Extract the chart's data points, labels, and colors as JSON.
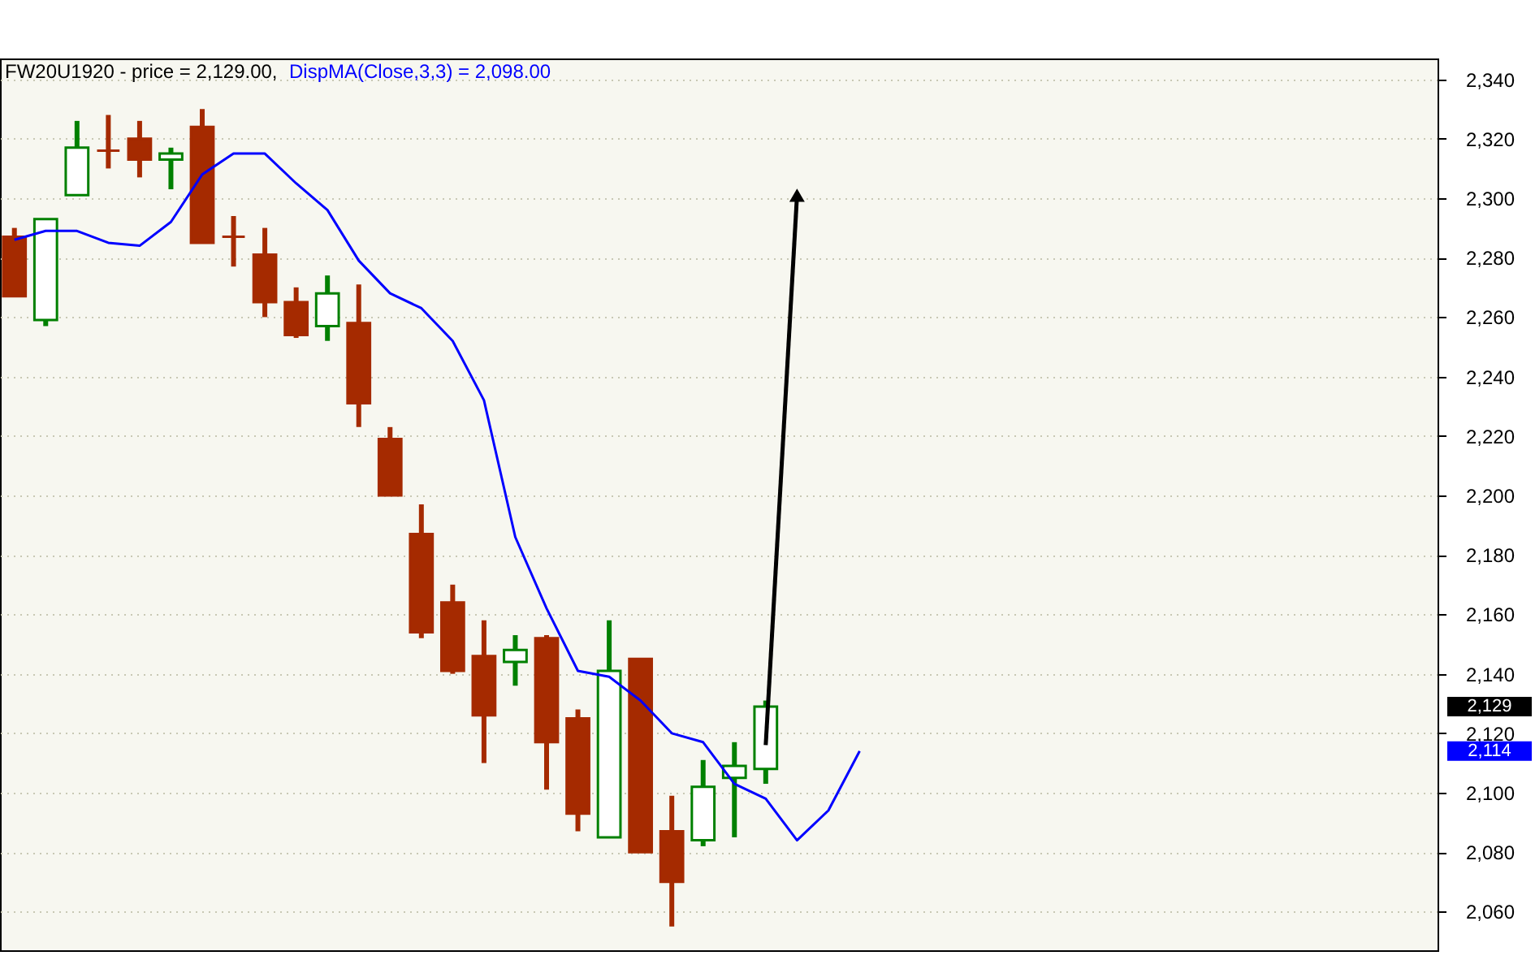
{
  "chart_data": {
    "type": "candlestick",
    "title": "FW20U1920 - price = 2,129.00,",
    "categories": [
      null,
      null,
      null,
      null,
      null,
      null,
      null,
      null,
      null,
      null,
      null,
      null,
      null,
      null,
      null,
      null,
      null,
      null,
      null,
      null,
      null,
      null,
      null,
      null,
      null,
      null,
      null,
      null,
      null,
      null,
      null,
      null,
      null,
      null,
      null,
      null,
      null,
      null,
      null,
      null,
      null,
      null,
      null,
      null,
      null,
      null
    ],
    "ohlc": [
      [
        2287,
        2290,
        2267,
        2267
      ],
      [
        2259,
        2293,
        2257,
        2293
      ],
      [
        2301,
        2326,
        2301,
        2317
      ],
      [
        2316,
        2328,
        2310,
        2316
      ],
      [
        2320,
        2326,
        2307,
        2313
      ],
      [
        2313,
        2317,
        2303,
        2315
      ],
      [
        2324,
        2330,
        2285,
        2285
      ],
      [
        2287,
        2294,
        2277,
        2287
      ],
      [
        2281,
        2290,
        2260,
        2265
      ],
      [
        2265,
        2270,
        2253,
        2254
      ],
      [
        2257,
        2274,
        2252,
        2268
      ],
      [
        2258,
        2271,
        2223,
        2231
      ],
      [
        2219,
        2223,
        2200,
        2200
      ],
      [
        2187,
        2197,
        2152,
        2154
      ],
      [
        2164,
        2170,
        2140,
        2141
      ],
      [
        2146,
        2158,
        2110,
        2126
      ],
      [
        2144,
        2153,
        2136,
        2148
      ],
      [
        2152,
        2153,
        2101,
        2117
      ],
      [
        2125,
        2128,
        2087,
        2093
      ],
      [
        2085,
        2158,
        2085,
        2141
      ],
      [
        2145,
        2145,
        2080,
        2080
      ],
      [
        2087,
        2099,
        2055,
        2070
      ],
      [
        2084,
        2111,
        2082,
        2102
      ],
      [
        2105,
        2117,
        2085,
        2109
      ],
      [
        2108,
        2131,
        2103,
        2129
      ],
      null,
      null,
      null,
      null,
      null,
      null,
      null,
      null,
      null,
      null,
      null,
      null,
      null,
      null,
      null,
      null,
      null,
      null,
      null,
      null,
      null
    ],
    "colors": [
      "#a52a00",
      "#008000",
      "#008000",
      "#a52a00",
      "#a52a00",
      "#008000",
      "#a52a00",
      "#a52a00",
      "#a52a00",
      "#a52a00",
      "#008000",
      "#a52a00",
      "#a52a00",
      "#a52a00",
      "#a52a00",
      "#a52a00",
      "#008000",
      "#a52a00",
      "#a52a00",
      "#008000",
      "#a52a00",
      "#a52a00",
      "#008000",
      "#008000",
      "#008000",
      null,
      null,
      null,
      null,
      null,
      null,
      null,
      null,
      null,
      null,
      null,
      null,
      null,
      null,
      null,
      null,
      null,
      null,
      null,
      null,
      null
    ],
    "series": [
      {
        "name": "DispMA(Close,3,3) = 2,098.00",
        "type": "line",
        "color": "#0000ff",
        "values": [
          2286,
          2289,
          2289,
          2285,
          2284,
          2292,
          2308,
          2315,
          2315,
          2305,
          2296,
          2279,
          2268,
          2263,
          2252,
          2232,
          2186,
          2162,
          2141,
          2139,
          2131,
          2120,
          2117,
          2103,
          2098,
          2084,
          2094,
          2114,
          null,
          null,
          null,
          null,
          null,
          null,
          null,
          null,
          null,
          null,
          null,
          null,
          null,
          null,
          null,
          null,
          null,
          null
        ]
      },
      {
        "type": "line",
        "color": "#000000",
        "marker": "triangle",
        "values": [
          null,
          null,
          null,
          null,
          null,
          null,
          null,
          null,
          null,
          null,
          null,
          null,
          null,
          null,
          null,
          null,
          null,
          null,
          null,
          null,
          null,
          null,
          null,
          null,
          2116,
          2301,
          null,
          null,
          null,
          null,
          null,
          null,
          null,
          null,
          null,
          null,
          null,
          null,
          null,
          null,
          null,
          null,
          null,
          null,
          null,
          null
        ]
      }
    ],
    "ylim": [
      2047,
      2347
    ],
    "yticks": [
      {
        "value": 2060,
        "label": "2,060"
      },
      {
        "value": 2080,
        "label": "2,080"
      },
      {
        "value": 2100,
        "label": "2,100"
      },
      {
        "value": 2120,
        "label": "2,120"
      },
      {
        "value": 2140,
        "label": "2,140"
      },
      {
        "value": 2160,
        "label": "2,160"
      },
      {
        "value": 2180,
        "label": "2,180"
      },
      {
        "value": 2200,
        "label": "2,200"
      },
      {
        "value": 2220,
        "label": "2,220"
      },
      {
        "value": 2240,
        "label": "2,240"
      },
      {
        "value": 2260,
        "label": "2,260"
      },
      {
        "value": 2280,
        "label": "2,280"
      },
      {
        "value": 2300,
        "label": "2,300"
      },
      {
        "value": 2320,
        "label": "2,320"
      },
      {
        "value": 2340,
        "label": "2,340"
      }
    ],
    "annotations": [
      "2,129",
      "2,114"
    ],
    "grid": "y",
    "legend": "top left"
  }
}
